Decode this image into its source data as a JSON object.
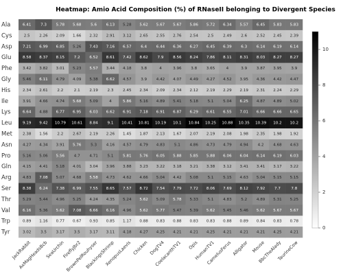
{
  "chart_data": {
    "type": "heatmap",
    "title": "Heatmap: Amio Acid Composition (%) of RNaseII belonging to Divergent Species",
    "x": [
      "JackRabbit",
      "AxMagHeadsBcb",
      "SeaUrchin",
      "FireflyJbr2",
      "BrownPelRouhyser",
      "BlackingsShrimp",
      "XenopusLaevis",
      "Chicken",
      "DogTV4",
      "CoelacanthTV1",
      "Opis",
      "HumanTV1",
      "CamelusFerus",
      "Alligator",
      "Mouse",
      "BbcTheAlady",
      "TaurineCow"
    ],
    "y": [
      "Ala",
      "Cys",
      "Asp",
      "Glu",
      "Phe",
      "Gly",
      "His",
      "Ile",
      "Lys",
      "Leu",
      "Met",
      "Asn",
      "Pro",
      "Gln",
      "Arg",
      "Ser",
      "Thr",
      "Val",
      "Trp",
      "Tyr"
    ],
    "values": [
      [
        6.41,
        7.3,
        5.78,
        5.68,
        5.6,
        6.13,
        5.28,
        5.62,
        5.67,
        5.67,
        5.86,
        5.72,
        6.34,
        5.57,
        6.45,
        5.83,
        5.83
      ],
      [
        2.5,
        2.26,
        2.09,
        1.66,
        2.32,
        2.91,
        3.12,
        2.65,
        2.55,
        2.76,
        2.54,
        2.5,
        2.49,
        2.6,
        2.52,
        2.45,
        2.39
      ],
      [
        7.21,
        6.99,
        6.85,
        5.26,
        7.43,
        7.16,
        6.57,
        6.4,
        6.44,
        6.36,
        6.27,
        6.45,
        6.39,
        6.3,
        6.14,
        6.19,
        6.14
      ],
      [
        8.58,
        8.37,
        8.15,
        7.2,
        6.52,
        8.61,
        7.42,
        8.62,
        7.9,
        8.56,
        8.24,
        7.86,
        8.11,
        8.31,
        8.03,
        8.27,
        8.27
      ],
      [
        3.42,
        3.82,
        3.01,
        5.23,
        5.57,
        3.44,
        4.18,
        3.8,
        4,
        3.96,
        3.8,
        3.65,
        4,
        3.9,
        3.87,
        3.95,
        3.9
      ],
      [
        5.46,
        6.11,
        4.79,
        4.09,
        5.38,
        6.62,
        4.57,
        3.9,
        4.42,
        4.07,
        4.49,
        4.27,
        4.52,
        3.95,
        4.36,
        4.42,
        4.47
      ],
      [
        2.34,
        2.61,
        2.2,
        2.1,
        2.19,
        2.3,
        2.45,
        2.34,
        2.09,
        2.34,
        2.12,
        2.19,
        2.29,
        2.19,
        2.31,
        2.24,
        2.29
      ],
      [
        3.91,
        4.66,
        4.74,
        5.68,
        5.09,
        4,
        5.86,
        5.16,
        4.89,
        5.41,
        5.18,
        5.1,
        5.04,
        6.25,
        4.87,
        4.89,
        5.02
      ],
      [
        6.64,
        4.88,
        6.77,
        6.95,
        6.03,
        6.62,
        6.91,
        7.18,
        6.91,
        6.87,
        6.29,
        6.61,
        6.55,
        7.01,
        6.66,
        6.66,
        6.65
      ],
      [
        9.19,
        9.42,
        10.79,
        10.61,
        8.84,
        9.1,
        10.41,
        10.81,
        10.19,
        10.1,
        10.84,
        10.25,
        10.88,
        10.35,
        10.39,
        10.2,
        10.2
      ],
      [
        2.38,
        1.56,
        2.2,
        2.67,
        2.19,
        2.26,
        1.45,
        1.87,
        2.13,
        1.67,
        2.07,
        2.19,
        2.08,
        1.98,
        2.35,
        1.98,
        1.92
      ],
      [
        4.27,
        4.34,
        3.91,
        5.76,
        5.3,
        4.16,
        4.57,
        4.79,
        4.83,
        5.1,
        4.86,
        4.73,
        4.79,
        4.94,
        4.2,
        4.68,
        4.63
      ],
      [
        5.16,
        5.06,
        5.56,
        4.7,
        4.71,
        5.1,
        5.81,
        5.76,
        6.05,
        5.88,
        5.85,
        5.88,
        6.06,
        6.04,
        6.14,
        6.19,
        6.03
      ],
      [
        4.15,
        4.41,
        5.18,
        4.01,
        3.04,
        3.96,
        3.88,
        3.23,
        3.22,
        3.18,
        3.21,
        3.38,
        3.12,
        3.41,
        3.41,
        3.17,
        3.22
      ],
      [
        4.83,
        7.08,
        5.07,
        4.68,
        5.58,
        4.73,
        4.62,
        4.66,
        5.04,
        4.42,
        5.08,
        5.1,
        5.15,
        4.63,
        5.04,
        5.15,
        5.15
      ],
      [
        8.38,
        6.24,
        7.38,
        6.99,
        7.55,
        8.65,
        7.57,
        8.72,
        7.54,
        7.79,
        7.72,
        8.06,
        7.69,
        8.12,
        7.92,
        7.7,
        7.8
      ],
      [
        5.29,
        5.44,
        4.96,
        5.25,
        4.24,
        4.35,
        5.24,
        5.62,
        5.09,
        5.78,
        5.33,
        5.1,
        4.83,
        5.2,
        4.89,
        5.31,
        5.25
      ],
      [
        6.16,
        5.36,
        5.62,
        7.08,
        6.66,
        6.16,
        4.96,
        5.62,
        5.77,
        5.47,
        5.39,
        5.62,
        5.45,
        5.46,
        5.62,
        5.67,
        5.67
      ],
      [
        0.89,
        1.16,
        0.77,
        0.67,
        0.93,
        0.85,
        1.17,
        0.88,
        0.83,
        0.88,
        0.83,
        0.83,
        0.88,
        0.89,
        0.84,
        0.83,
        0.78
      ],
      [
        3.02,
        3.5,
        3.17,
        3.5,
        3.17,
        3.11,
        4.18,
        4.27,
        4.25,
        4.21,
        4.21,
        4.25,
        4.21,
        4.21,
        4.21,
        4.25,
        4.21
      ]
    ],
    "zlim": [
      0,
      11
    ],
    "zticks": [
      0,
      2,
      4,
      6,
      8,
      10
    ],
    "colormap": [
      "#ffffff",
      "#000000"
    ]
  }
}
